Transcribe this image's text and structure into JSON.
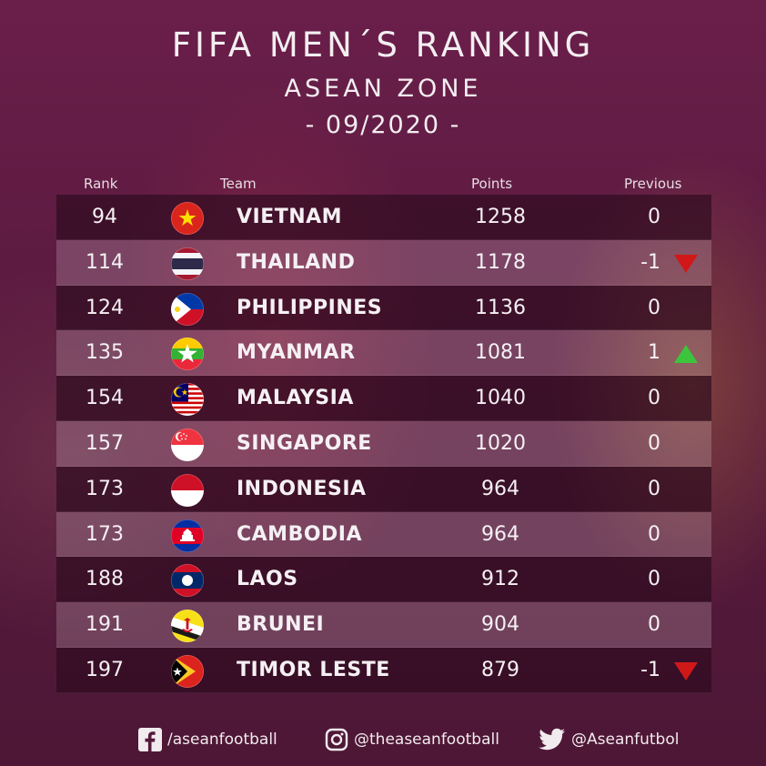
{
  "header": {
    "title": "FIFA MEN´S RANKING",
    "subtitle": "ASEAN ZONE",
    "date": "- 09/2020 -"
  },
  "columns": {
    "rank": "Rank",
    "team": "Team",
    "points": "Points",
    "previous": "Previous"
  },
  "rows": [
    {
      "rank": "94",
      "team": "VIETNAM",
      "points": "1258",
      "previous": "0",
      "trend": "none",
      "flag": "vietnam-flag-icon"
    },
    {
      "rank": "114",
      "team": "THAILAND",
      "points": "1178",
      "previous": "-1",
      "trend": "down",
      "flag": "thailand-flag-icon"
    },
    {
      "rank": "124",
      "team": "PHILIPPINES",
      "points": "1136",
      "previous": "0",
      "trend": "none",
      "flag": "philippines-flag-icon"
    },
    {
      "rank": "135",
      "team": "MYANMAR",
      "points": "1081",
      "previous": "1",
      "trend": "up",
      "flag": "myanmar-flag-icon"
    },
    {
      "rank": "154",
      "team": "MALAYSIA",
      "points": "1040",
      "previous": "0",
      "trend": "none",
      "flag": "malaysia-flag-icon"
    },
    {
      "rank": "157",
      "team": "SINGAPORE",
      "points": "1020",
      "previous": "0",
      "trend": "none",
      "flag": "singapore-flag-icon"
    },
    {
      "rank": "173",
      "team": "INDONESIA",
      "points": "964",
      "previous": "0",
      "trend": "none",
      "flag": "indonesia-flag-icon"
    },
    {
      "rank": "173",
      "team": "CAMBODIA",
      "points": "964",
      "previous": "0",
      "trend": "none",
      "flag": "cambodia-flag-icon"
    },
    {
      "rank": "188",
      "team": "LAOS",
      "points": "912",
      "previous": "0",
      "trend": "none",
      "flag": "laos-flag-icon"
    },
    {
      "rank": "191",
      "team": "BRUNEI",
      "points": "904",
      "previous": "0",
      "trend": "none",
      "flag": "brunei-flag-icon"
    },
    {
      "rank": "197",
      "team": "TIMOR LESTE",
      "points": "879",
      "previous": "-1",
      "trend": "down",
      "flag": "timor-leste-flag-icon"
    }
  ],
  "footer": {
    "facebook": "/aseanfootball",
    "instagram": "@theaseanfootball",
    "twitter": "@Aseanfutbol"
  },
  "colors": {
    "background": "#5a1a3f",
    "trend_up": "#3cc43c",
    "trend_down": "#d01818"
  }
}
